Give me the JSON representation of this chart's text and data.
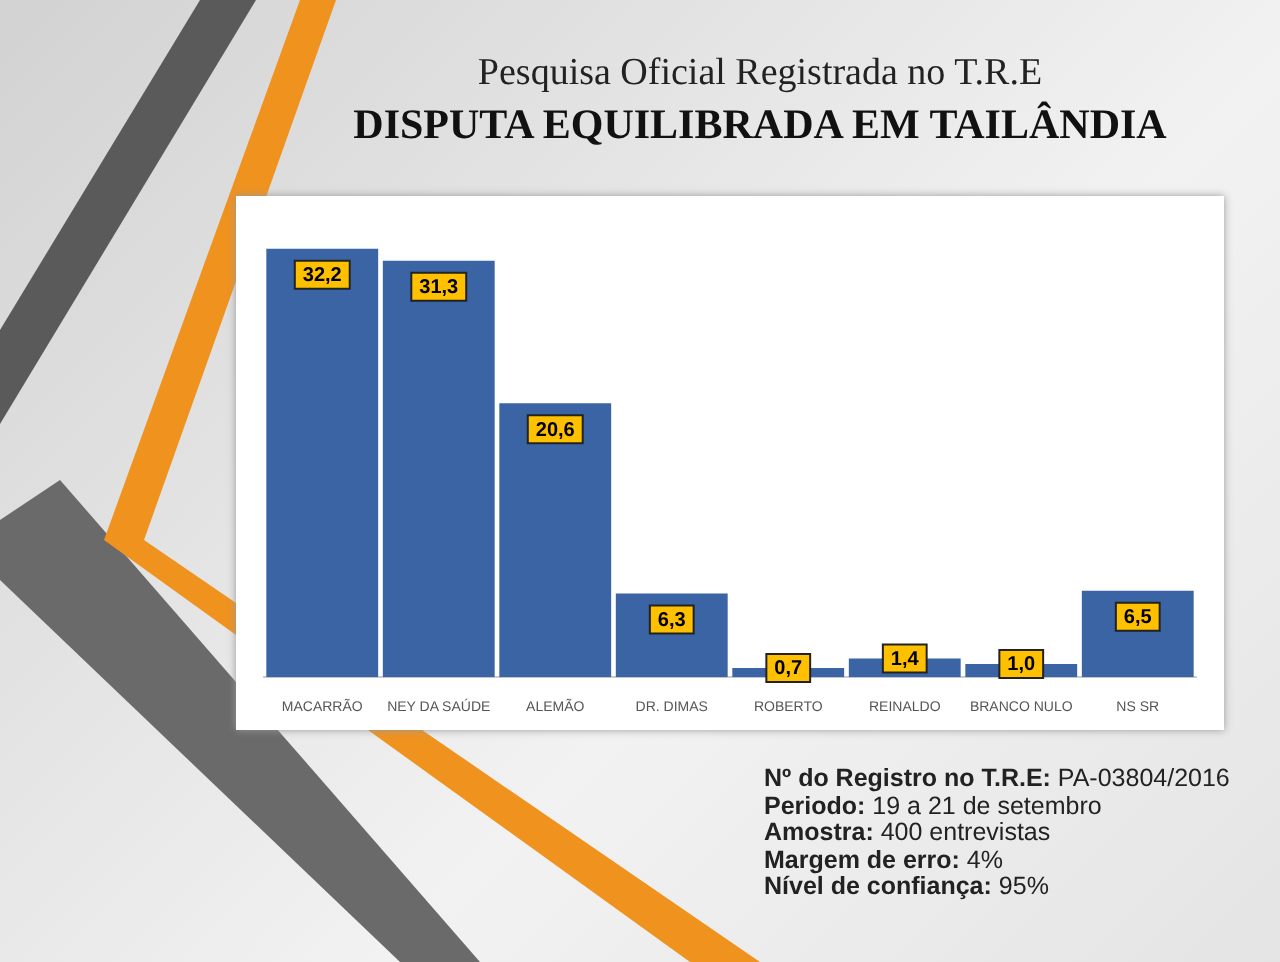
{
  "chart_data": {
    "type": "bar",
    "title": "Pesquisa Oficial Registrada no T.R.E",
    "subtitle": "DISPUTA EQUILIBRADA EM TAILÂNDIA",
    "categories": [
      "MACARRÃO",
      "NEY DA SAÚDE",
      "ALEMÃO",
      "DR. DIMAS",
      "ROBERTO",
      "REINALDO",
      "BRANCO NULO",
      "NS SR"
    ],
    "values": [
      32.2,
      31.3,
      20.6,
      6.3,
      0.7,
      1.4,
      1.0,
      6.5
    ],
    "value_labels": [
      "32,2",
      "31,3",
      "20,6",
      "6,3",
      "0,7",
      "1,4",
      "1,0",
      "6,5"
    ],
    "color": "#3a64a3",
    "annotations": [
      "Nº do Registro no T.R.E: PA-03804/2016",
      "Periodo: 19 a 21 de setembro",
      "Amostra: 400 entrevistas",
      "Margem de erro: 4%",
      "Nível de confiança: 95%"
    ]
  }
}
